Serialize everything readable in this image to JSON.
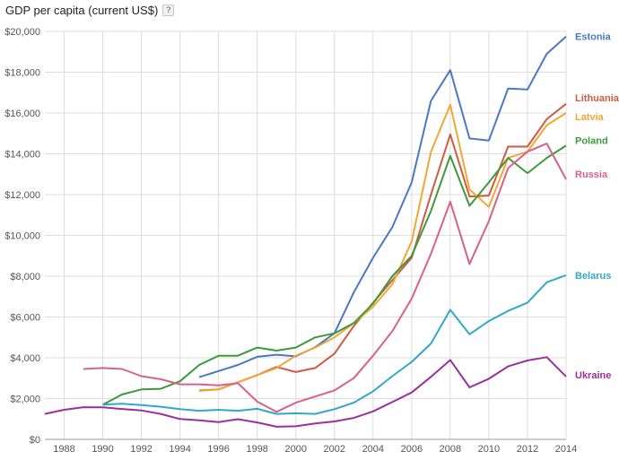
{
  "header": {
    "title": "GDP per capita (current US$)",
    "help_label": "?"
  },
  "chart_data": {
    "type": "line",
    "title": "GDP per capita (current US$)",
    "xlabel": "",
    "ylabel": "",
    "xlim": [
      1987,
      2014
    ],
    "ylim": [
      0,
      20000
    ],
    "grid": true,
    "legend": "inline labels at right end of each line",
    "x_ticks": [
      1988,
      1990,
      1992,
      1994,
      1996,
      1998,
      2000,
      2002,
      2004,
      2006,
      2008,
      2010,
      2012,
      2014
    ],
    "y_ticks": [
      0,
      2000,
      4000,
      6000,
      8000,
      10000,
      12000,
      14000,
      16000,
      18000,
      20000
    ],
    "y_tick_labels": [
      "$0",
      "$2,000",
      "$4,000",
      "$6,000",
      "$8,000",
      "$10,000",
      "$12,000",
      "$14,000",
      "$16,000",
      "$18,000",
      "$20,000"
    ],
    "series": [
      {
        "name": "Estonia",
        "color": "#4a78c2",
        "x": [
          1995,
          1996,
          1997,
          1998,
          1999,
          2000,
          2001,
          2002,
          2003,
          2004,
          2005,
          2006,
          2007,
          2008,
          2009,
          2010,
          2011,
          2012,
          2013,
          2014
        ],
        "y": [
          3050,
          3350,
          3650,
          4050,
          4150,
          4070,
          4520,
          5200,
          7200,
          8900,
          10400,
          12600,
          16600,
          18100,
          14750,
          14650,
          17200,
          17150,
          18900,
          19750
        ]
      },
      {
        "name": "Lithuania",
        "color": "#d05a42",
        "x": [
          1995,
          1996,
          1997,
          1998,
          1999,
          2000,
          2001,
          2002,
          2003,
          2004,
          2005,
          2006,
          2007,
          2008,
          2009,
          2010,
          2011,
          2012,
          2013,
          2014
        ],
        "y": [
          2400,
          2450,
          2800,
          3150,
          3550,
          3300,
          3500,
          4200,
          5550,
          6700,
          7800,
          8900,
          12000,
          14950,
          11900,
          11950,
          14350,
          14350,
          15700,
          16450
        ]
      },
      {
        "name": "Latvia",
        "color": "#f1a832",
        "x": [
          1995,
          1996,
          1997,
          1998,
          1999,
          2000,
          2001,
          2002,
          2003,
          2004,
          2005,
          2006,
          2007,
          2008,
          2009,
          2010,
          2011,
          2012,
          2013,
          2014
        ],
        "y": [
          2380,
          2450,
          2800,
          3150,
          3500,
          4100,
          4500,
          5000,
          5700,
          6500,
          7600,
          9700,
          14100,
          16400,
          12250,
          11400,
          13800,
          14100,
          15400,
          16000
        ]
      },
      {
        "name": "Poland",
        "color": "#3c9a3c",
        "x": [
          1990,
          1991,
          1992,
          1993,
          1994,
          1995,
          1996,
          1997,
          1998,
          1999,
          2000,
          2001,
          2002,
          2003,
          2004,
          2005,
          2006,
          2007,
          2008,
          2009,
          2010,
          2011,
          2012,
          2013,
          2014
        ],
        "y": [
          1700,
          2200,
          2450,
          2480,
          2850,
          3650,
          4100,
          4100,
          4500,
          4350,
          4500,
          5000,
          5200,
          5700,
          6650,
          8000,
          9000,
          11200,
          13900,
          11450,
          12600,
          13800,
          13050,
          13800,
          14400
        ]
      },
      {
        "name": "Russia",
        "color": "#d9608a",
        "x": [
          1989,
          1990,
          1991,
          1992,
          1993,
          1994,
          1995,
          1996,
          1997,
          1998,
          1999,
          2000,
          2001,
          2002,
          2003,
          2004,
          2005,
          2006,
          2007,
          2008,
          2009,
          2010,
          2011,
          2012,
          2013,
          2014
        ],
        "y": [
          3450,
          3500,
          3450,
          3100,
          2950,
          2700,
          2700,
          2650,
          2750,
          1850,
          1350,
          1800,
          2100,
          2400,
          3000,
          4100,
          5300,
          6900,
          9100,
          11650,
          8600,
          10700,
          13300,
          14100,
          14500,
          12750
        ]
      },
      {
        "name": "Belarus",
        "color": "#30a8c8",
        "x": [
          1990,
          1991,
          1992,
          1993,
          1994,
          1995,
          1996,
          1997,
          1998,
          1999,
          2000,
          2001,
          2002,
          2003,
          2004,
          2005,
          2006,
          2007,
          2008,
          2009,
          2010,
          2011,
          2012,
          2013,
          2014
        ],
        "y": [
          1700,
          1750,
          1680,
          1600,
          1480,
          1400,
          1450,
          1400,
          1500,
          1250,
          1280,
          1250,
          1480,
          1800,
          2350,
          3100,
          3800,
          4700,
          6350,
          5150,
          5800,
          6300,
          6700,
          7700,
          8050
        ]
      },
      {
        "name": "Ukraine",
        "color": "#9c2fa0",
        "x": [
          1987,
          1988,
          1989,
          1990,
          1991,
          1992,
          1993,
          1994,
          1995,
          1996,
          1997,
          1998,
          1999,
          2000,
          2001,
          2002,
          2003,
          2004,
          2005,
          2006,
          2007,
          2008,
          2009,
          2010,
          2011,
          2012,
          2013,
          2014
        ],
        "y": [
          1250,
          1450,
          1580,
          1570,
          1490,
          1420,
          1250,
          1000,
          930,
          850,
          990,
          830,
          620,
          640,
          780,
          880,
          1050,
          1370,
          1830,
          2300,
          3070,
          3890,
          2550,
          2970,
          3580,
          3870,
          4030,
          3080
        ]
      }
    ]
  }
}
